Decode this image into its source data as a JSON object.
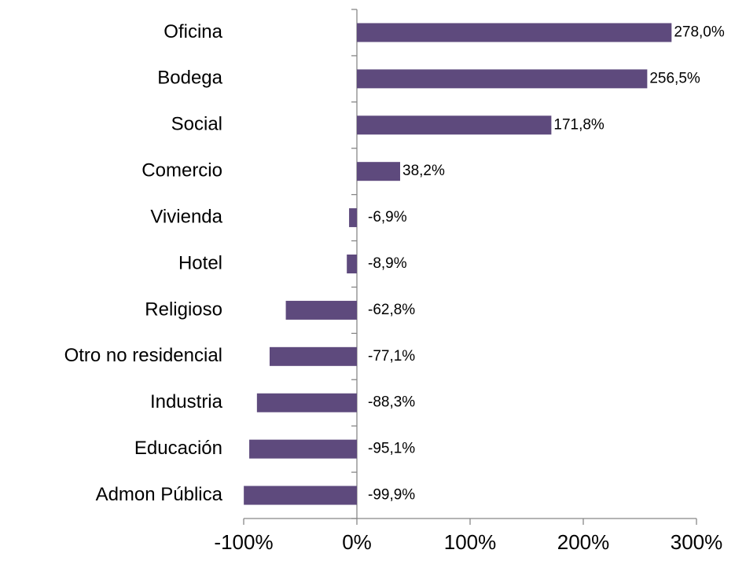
{
  "chart_data": {
    "type": "barh",
    "categories": [
      "Oficina",
      "Bodega",
      "Social",
      "Comercio",
      "Vivienda",
      "Hotel",
      "Religioso",
      "Otro no residencial",
      "Industria",
      "Educación",
      "Admon Pública"
    ],
    "values": [
      278.0,
      256.5,
      171.8,
      38.2,
      -6.9,
      -8.9,
      -62.8,
      -77.1,
      -88.3,
      -95.1,
      -99.9
    ],
    "value_labels": [
      "278,0%",
      "256,5%",
      "171,8%",
      "38,2%",
      "-6,9%",
      "-8,9%",
      "-62,8%",
      "-77,1%",
      "-88,3%",
      "-95,1%",
      "-99,9%"
    ],
    "color": "#5e4a7d",
    "xlim": [
      -100,
      300
    ],
    "xticks": [
      {
        "value": -100,
        "label": "-100%"
      },
      {
        "value": 0,
        "label": "0%"
      },
      {
        "value": 100,
        "label": "100%"
      },
      {
        "value": 200,
        "label": "200%"
      },
      {
        "value": 300,
        "label": "300%"
      }
    ]
  }
}
